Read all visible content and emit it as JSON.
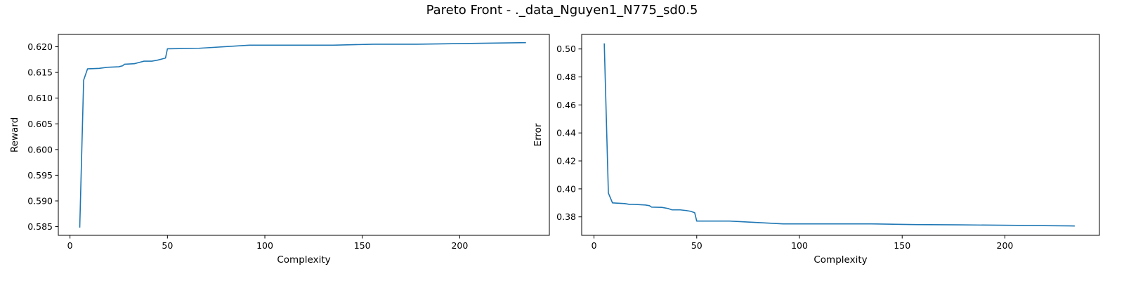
{
  "figure": {
    "suptitle": "Pareto Front - ._data_Nguyen1_N775_sd0.5"
  },
  "chart_data": [
    {
      "type": "line",
      "xlabel": "Complexity",
      "ylabel": "Reward",
      "xlim": [
        -6,
        246
      ],
      "ylim": [
        0.5833,
        0.6224
      ],
      "xticks": [
        0,
        50,
        100,
        150,
        200
      ],
      "yticks": [
        0.585,
        0.59,
        0.595,
        0.6,
        0.605,
        0.61,
        0.615,
        0.62
      ],
      "ytick_labels": [
        "0.585",
        "0.590",
        "0.595",
        "0.600",
        "0.605",
        "0.610",
        "0.615",
        "0.620"
      ],
      "grid": false,
      "color": "#1f77b4",
      "series": [
        {
          "x": [
            5,
            7,
            9,
            15,
            17,
            19,
            25,
            27,
            28,
            33,
            36,
            38,
            42,
            45,
            47,
            49,
            50,
            66,
            92,
            135,
            156,
            178,
            234
          ],
          "y": [
            0.5848,
            0.6135,
            0.6157,
            0.6158,
            0.6159,
            0.616,
            0.6161,
            0.6163,
            0.6166,
            0.6167,
            0.617,
            0.6172,
            0.6172,
            0.6174,
            0.6176,
            0.6178,
            0.6196,
            0.6197,
            0.6203,
            0.6203,
            0.6205,
            0.6205,
            0.6208
          ]
        }
      ]
    },
    {
      "type": "line",
      "xlabel": "Complexity",
      "ylabel": "Error",
      "xlim": [
        -6,
        246
      ],
      "ylim": [
        0.3668,
        0.5104
      ],
      "xticks": [
        0,
        50,
        100,
        150,
        200
      ],
      "yticks": [
        0.38,
        0.4,
        0.42,
        0.44,
        0.46,
        0.48,
        0.5
      ],
      "ytick_labels": [
        "0.38",
        "0.40",
        "0.42",
        "0.44",
        "0.46",
        "0.48",
        "0.50"
      ],
      "grid": false,
      "color": "#1f77b4",
      "series": [
        {
          "x": [
            5,
            7,
            9,
            15,
            17,
            19,
            25,
            27,
            28,
            33,
            36,
            38,
            42,
            45,
            47,
            49,
            50,
            66,
            92,
            135,
            156,
            178,
            234
          ],
          "y": [
            0.504,
            0.397,
            0.39,
            0.3895,
            0.389,
            0.389,
            0.3885,
            0.388,
            0.387,
            0.3868,
            0.386,
            0.385,
            0.385,
            0.3845,
            0.384,
            0.383,
            0.377,
            0.377,
            0.375,
            0.375,
            0.3745,
            0.3743,
            0.3735
          ]
        }
      ]
    }
  ]
}
